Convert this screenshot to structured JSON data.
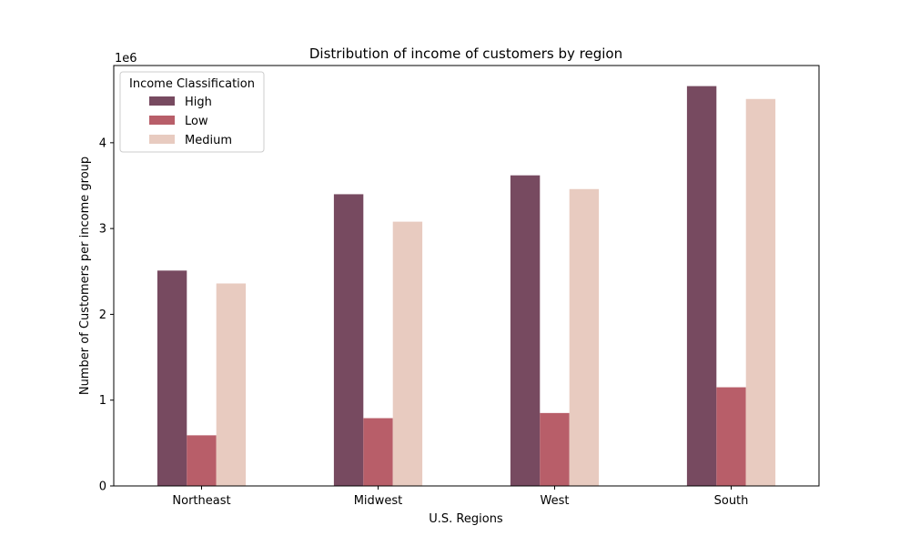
{
  "chart_data": {
    "type": "bar",
    "title": "Distribution of income of customers by region",
    "xlabel": "U.S. Regions",
    "ylabel": "Number of Customers per income group",
    "y_offset_label": "1e6",
    "categories": [
      "Northeast",
      "Midwest",
      "West",
      "South"
    ],
    "ylim": [
      0,
      4.9
    ],
    "yticks": [
      0,
      1,
      2,
      3,
      4
    ],
    "y_scale_note": "values in millions (1e6)",
    "grid": false,
    "legend": {
      "title": "Income Classification",
      "placement": "top-left"
    },
    "series": [
      {
        "name": "High",
        "color": "#774a60",
        "values": [
          2.51,
          3.4,
          3.62,
          4.66
        ]
      },
      {
        "name": "Low",
        "color": "#b85e69",
        "values": [
          0.59,
          0.79,
          0.85,
          1.15
        ]
      },
      {
        "name": "Medium",
        "color": "#e8cbc0",
        "values": [
          2.36,
          3.08,
          3.46,
          4.51
        ]
      }
    ]
  }
}
